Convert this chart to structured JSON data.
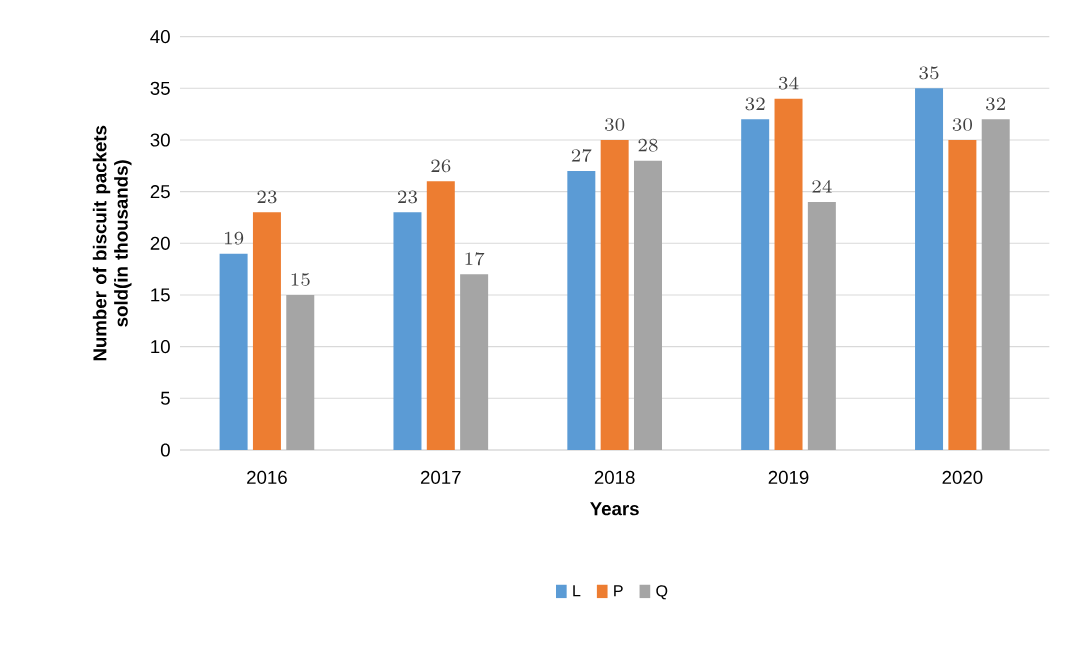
{
  "chart_data": {
    "type": "bar",
    "xlabel": "Years",
    "ylabel": "Number of biscuit packets sold(in thousands)",
    "categories": [
      "2016",
      "2017",
      "2018",
      "2019",
      "2020"
    ],
    "series": [
      {
        "name": "L",
        "color": "#5b9bd5",
        "values": [
          19,
          23,
          27,
          32,
          35
        ]
      },
      {
        "name": "P",
        "color": "#ed7d31",
        "values": [
          23,
          26,
          30,
          34,
          30
        ]
      },
      {
        "name": "Q",
        "color": "#a5a5a5",
        "values": [
          15,
          17,
          28,
          24,
          32
        ]
      }
    ],
    "ylim": [
      0,
      40
    ],
    "yticks": [
      0,
      5,
      10,
      15,
      20,
      25,
      30,
      35,
      40
    ],
    "grid": "y",
    "legend": "bottom",
    "data_labels": true
  }
}
